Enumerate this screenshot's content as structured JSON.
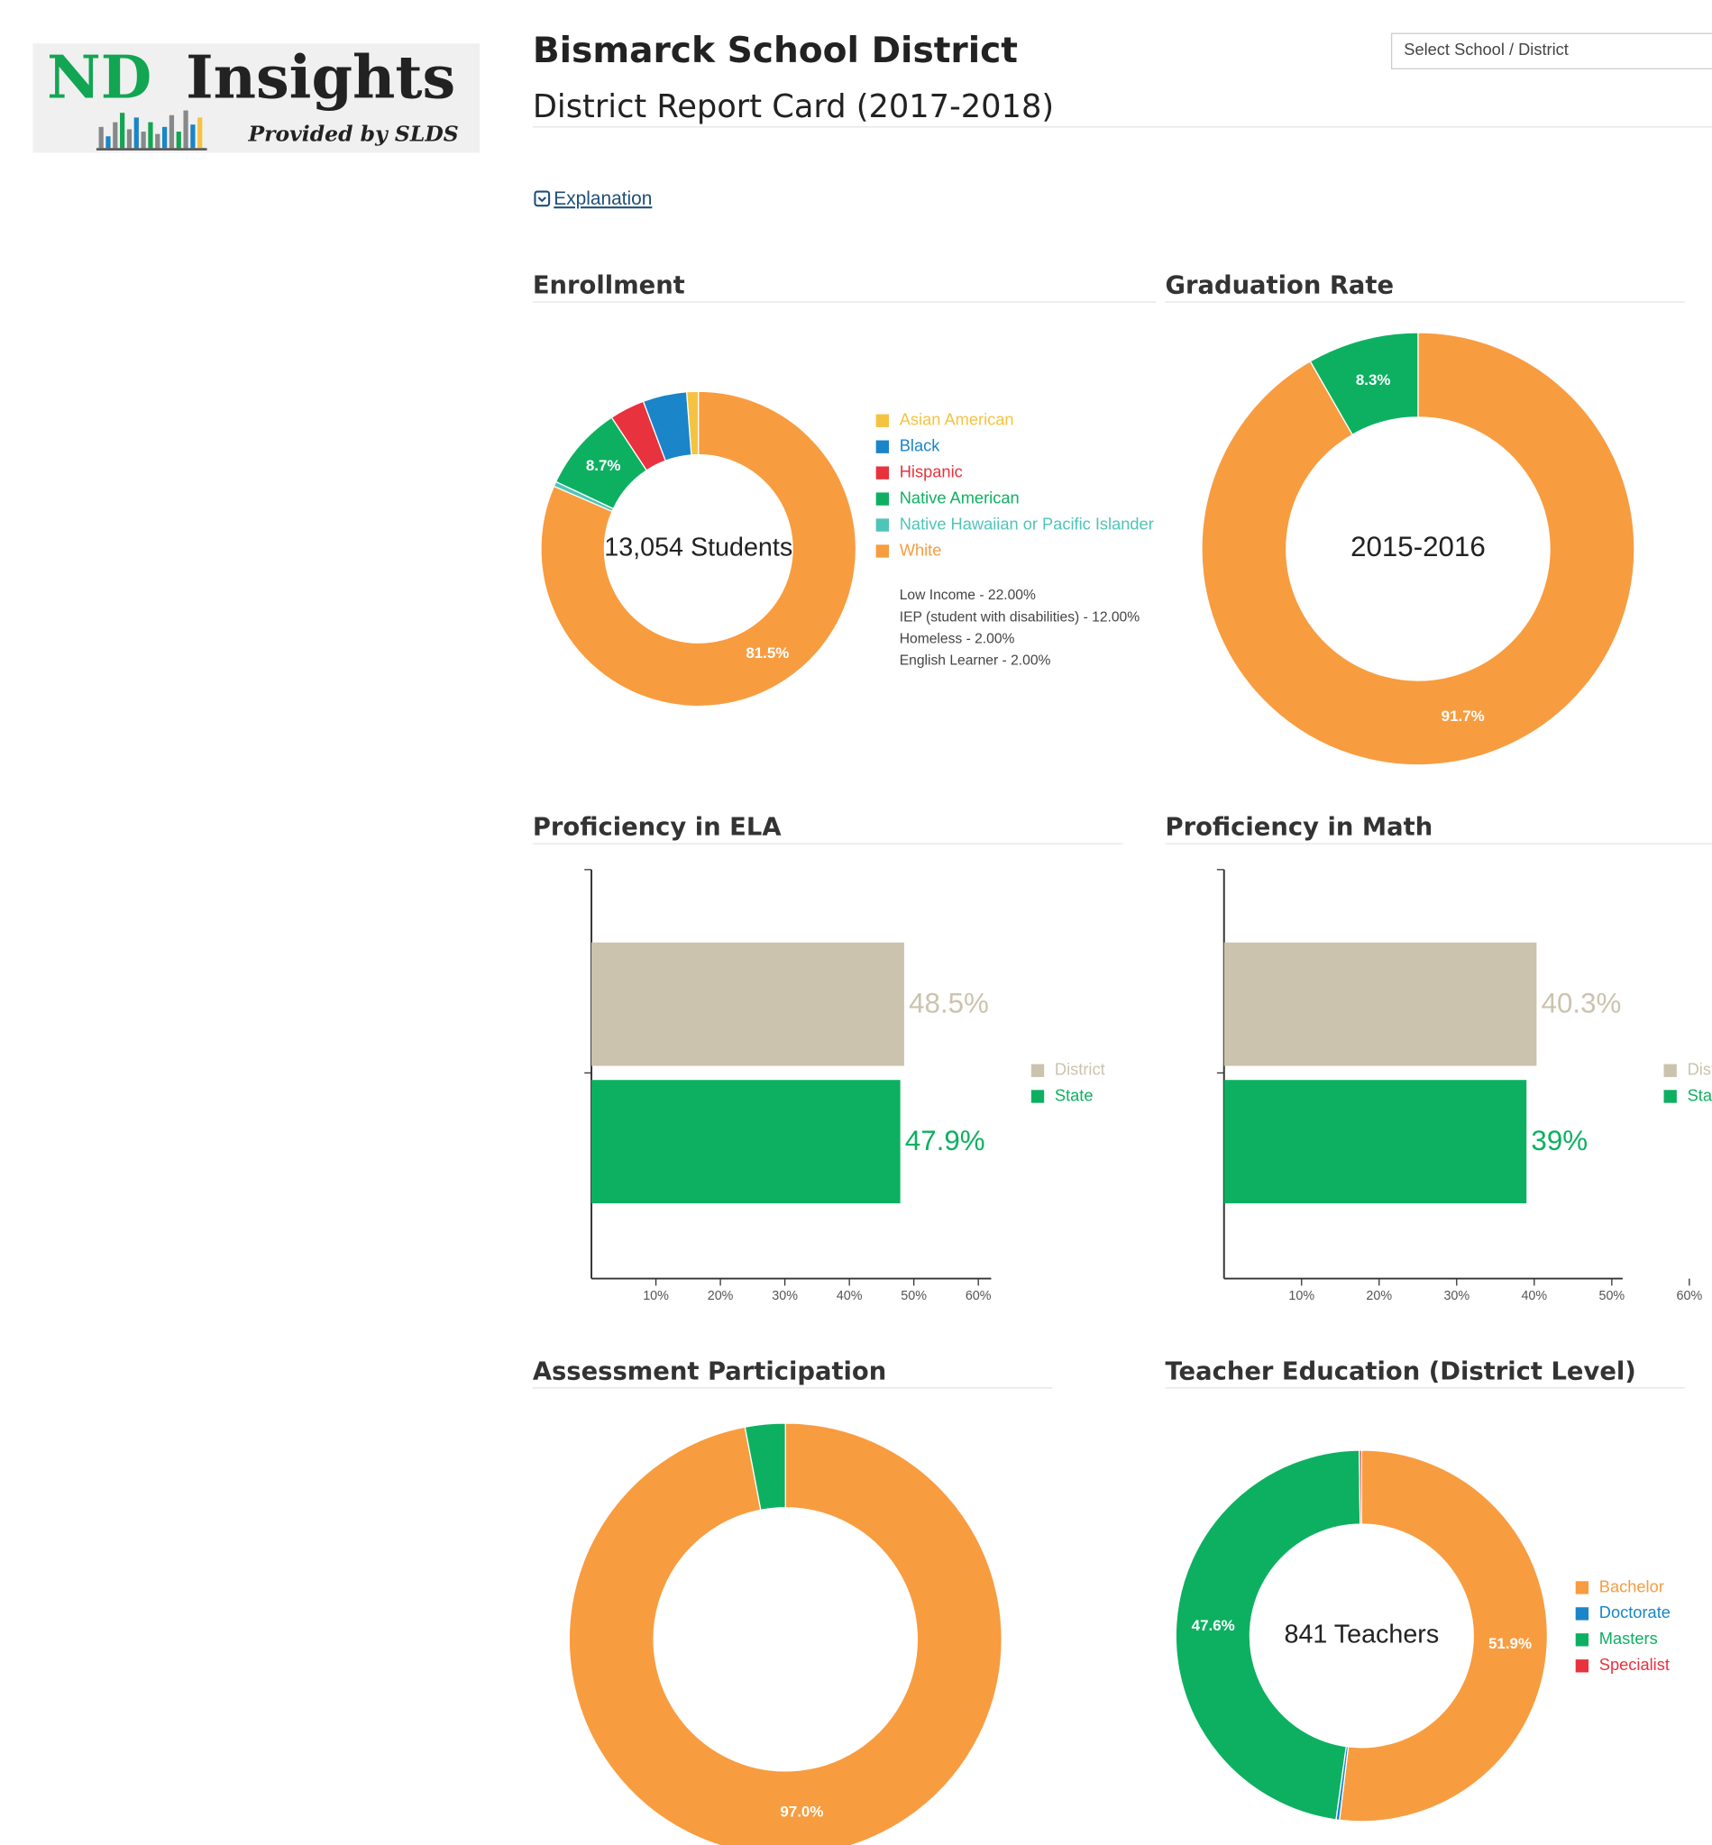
{
  "header": {
    "logo_title": "ND",
    "logo_title2": "Insights",
    "logo_subtitle": "Provided by SLDS",
    "title": "Bismarck School District",
    "subtitle": "District Report Card (2017-2018)",
    "select_placeholder": "Select School / District",
    "explanation": "Explanation"
  },
  "chart_data": [
    {
      "type": "donut",
      "title": "Enrollment",
      "center_label": "13,054 Students",
      "clockwise": false,
      "categories": [
        "Asian American",
        "Black",
        "Hispanic",
        "Native American",
        "Native Hawaiian or Pacific Islander",
        "White"
      ],
      "colors": [
        "#f5c342",
        "#1a85c8",
        "#e8323d",
        "#0db061",
        "#4fc4b8",
        "#f89c40"
      ],
      "values": [
        1.2,
        4.5,
        3.6,
        8.7,
        0.5,
        81.5
      ],
      "value_labels": [
        null,
        null,
        null,
        "8.7%",
        null,
        "81.5%"
      ],
      "notes": [
        "Low Income - 22.00%",
        "IEP (student with disabilities) - 12.00%",
        "Homeless - 2.00%",
        "English Learner - 2.00%"
      ]
    },
    {
      "type": "donut",
      "title": "Graduation Rate",
      "center_label": "2015-2016",
      "clockwise": true,
      "colors": [
        "#f89c40",
        "#0db061"
      ],
      "values": [
        91.7,
        8.3
      ],
      "value_labels": [
        "91.7%",
        "8.3%"
      ]
    },
    {
      "type": "bar",
      "orientation": "horizontal",
      "title": "Proficiency in ELA",
      "categories": [
        null
      ],
      "series": [
        {
          "name": "District",
          "color": "#cbc3ad",
          "values": [
            48.5
          ],
          "value_labels": [
            "48.5%"
          ]
        },
        {
          "name": "State",
          "color": "#0db061",
          "values": [
            47.9
          ],
          "value_labels": [
            "47.9%"
          ]
        }
      ],
      "xlim": [
        0,
        62
      ],
      "xticks": [
        {
          "value": 10,
          "label": "10%"
        },
        {
          "value": 20,
          "label": "20%"
        },
        {
          "value": 30,
          "label": "30%"
        },
        {
          "value": 40,
          "label": "40%"
        },
        {
          "value": 50,
          "label": "50%"
        },
        {
          "value": 60,
          "label": "60%"
        }
      ]
    },
    {
      "type": "bar",
      "orientation": "horizontal",
      "title": "Proficiency in Math",
      "categories": [
        null
      ],
      "series": [
        {
          "name": "District",
          "color": "#cbc3ad",
          "values": [
            40.3
          ],
          "value_labels": [
            "40.3%"
          ]
        },
        {
          "name": "State",
          "color": "#0db061",
          "values": [
            39
          ],
          "value_labels": [
            "39%"
          ]
        }
      ],
      "xlim": [
        0,
        51.4
      ],
      "xticks": [
        {
          "value": 10,
          "label": "10%"
        },
        {
          "value": 20,
          "label": "20%"
        },
        {
          "value": 30,
          "label": "30%"
        },
        {
          "value": 40,
          "label": "40%"
        },
        {
          "value": 50,
          "label": "50%"
        },
        {
          "value": 60,
          "label": "60%"
        }
      ]
    },
    {
      "type": "donut",
      "title": "Assessment Participation",
      "clockwise": true,
      "colors": [
        "#f89c40",
        "#0db061"
      ],
      "values": [
        97.0,
        3.0
      ],
      "value_labels": [
        "97.0%",
        null
      ]
    },
    {
      "type": "donut",
      "title": "Teacher Education (District Level)",
      "center_label": "841 Teachers",
      "clockwise": true,
      "categories": [
        "Bachelor",
        "Doctorate",
        "Masters",
        "Specialist"
      ],
      "colors": [
        "#f89c40",
        "#1a85c8",
        "#0db061",
        "#e8323d"
      ],
      "values": [
        51.9,
        0.3,
        47.6,
        0.2
      ],
      "value_labels": [
        "51.9%",
        null,
        "47.6%",
        null
      ]
    }
  ]
}
